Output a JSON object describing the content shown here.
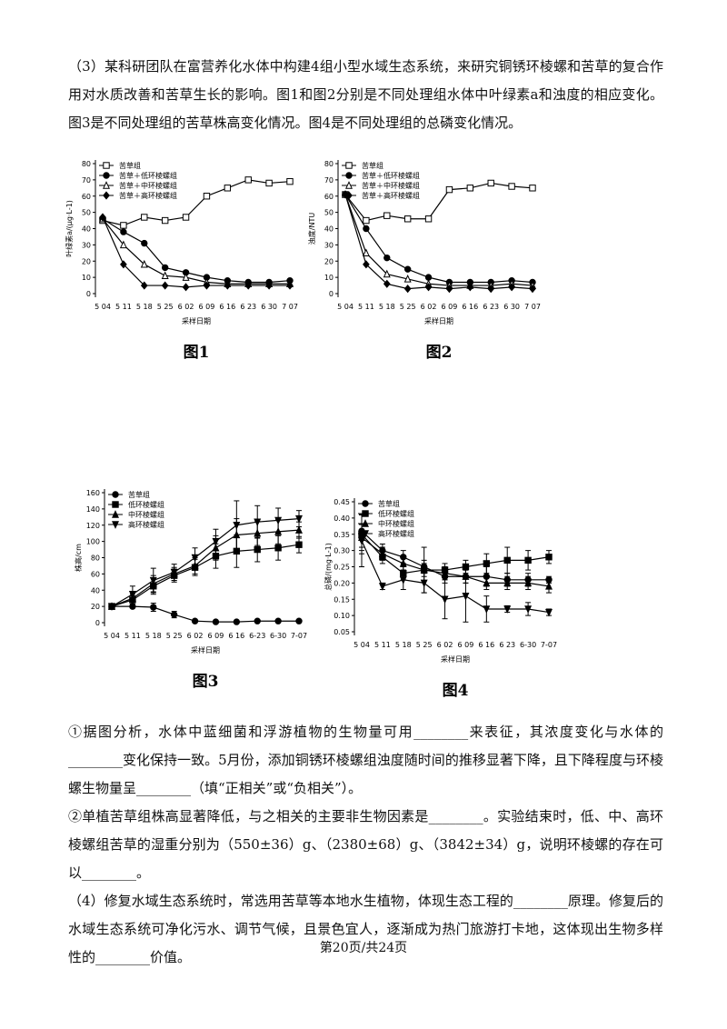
{
  "paragraphs_top": [
    "（3）某科研团队在富营养化水体中构建4组小型水域生态系统，来研究铜锈环棱螺和苦草的复合作用对水质改善和苦草生长的影响。图1和图2分别是不同处理组水体中叶绿素a和浊度的相应变化。图3是不同处理组的苦草株高变化情况。图4是不同处理组的总磷变化情况。"
  ],
  "figures": [
    {
      "type": "line",
      "caption": "图1",
      "xlabel": "采样日期",
      "ylabel": "叶绿素a/(μg·L-1)",
      "categories": [
        "5 04",
        "5 11",
        "5 18",
        "5 25",
        "6 02",
        "6 09",
        "6 16",
        "6 23",
        "6 30",
        "7 07"
      ],
      "ylim": [
        0,
        80
      ],
      "yticks": [
        0,
        10,
        20,
        30,
        40,
        50,
        60,
        70,
        80
      ],
      "series": [
        {
          "name": "苦草组",
          "marker": "square-open",
          "color": "#000000",
          "values": [
            45,
            42,
            47,
            45,
            47,
            60,
            65,
            70,
            68,
            69
          ]
        },
        {
          "name": "苦草＋低环棱螺组",
          "marker": "circle",
          "color": "#000000",
          "values": [
            46,
            38,
            31,
            16,
            13,
            10,
            8,
            7,
            7,
            8
          ]
        },
        {
          "name": "苦草＋中环棱螺组",
          "marker": "triangle-open",
          "color": "#000000",
          "values": [
            46,
            30,
            18,
            11,
            10,
            7,
            6,
            6,
            6,
            6
          ]
        },
        {
          "name": "苦草＋高环棱螺组",
          "marker": "diamond",
          "color": "#000000",
          "values": [
            47,
            18,
            5,
            5,
            4,
            5,
            5,
            5,
            5,
            5
          ]
        }
      ]
    },
    {
      "type": "line",
      "caption": "图2",
      "xlabel": "采样日期",
      "ylabel": "浊度/NTU",
      "categories": [
        "5 04",
        "5 11",
        "5 18",
        "5 25",
        "6 02",
        "6 09",
        "6 16",
        "6 23",
        "6 30",
        "7 07"
      ],
      "ylim": [
        0,
        80
      ],
      "yticks": [
        0,
        10,
        20,
        30,
        40,
        50,
        60,
        70,
        80
      ],
      "series": [
        {
          "name": "苦草组",
          "marker": "square-open",
          "color": "#000000",
          "values": [
            61,
            45,
            48,
            46,
            46,
            64,
            65,
            68,
            66,
            65
          ]
        },
        {
          "name": "苦草＋低环棱螺组",
          "marker": "circle",
          "color": "#000000",
          "values": [
            61,
            40,
            22,
            15,
            10,
            7,
            7,
            7,
            8,
            7
          ]
        },
        {
          "name": "苦草＋中环棱螺组",
          "marker": "triangle-open",
          "color": "#000000",
          "values": [
            61,
            25,
            12,
            9,
            6,
            5,
            5,
            5,
            6,
            5
          ]
        },
        {
          "name": "苦草＋高环棱螺组",
          "marker": "diamond",
          "color": "#000000",
          "values": [
            61,
            18,
            6,
            3,
            4,
            3,
            4,
            3,
            4,
            3
          ]
        }
      ]
    },
    {
      "type": "line",
      "caption": "图3",
      "xlabel": "采样日期",
      "ylabel": "株高/cm",
      "categories": [
        "5 04",
        "5 11",
        "5 18",
        "5 25",
        "6 02",
        "6 09",
        "6 16",
        "6-23",
        "6-30",
        "7-07"
      ],
      "ylim": [
        0,
        160
      ],
      "yticks": [
        0,
        20,
        40,
        60,
        80,
        100,
        120,
        140,
        160
      ],
      "series": [
        {
          "name": "苦草组",
          "marker": "circle",
          "color": "#000000",
          "values": [
            20,
            20,
            19,
            10,
            2,
            1,
            1,
            2,
            2,
            2
          ],
          "errors": [
            0,
            2,
            5,
            4,
            1,
            0,
            0,
            0,
            0,
            0
          ]
        },
        {
          "name": "低环棱螺组",
          "marker": "square",
          "color": "#000000",
          "values": [
            20,
            28,
            45,
            58,
            68,
            82,
            88,
            90,
            92,
            96
          ],
          "errors": [
            0,
            5,
            10,
            8,
            10,
            15,
            20,
            15,
            15,
            10
          ]
        },
        {
          "name": "中环棱螺组",
          "marker": "triangle",
          "color": "#000000",
          "values": [
            20,
            30,
            48,
            60,
            70,
            92,
            108,
            110,
            112,
            114
          ],
          "errors": [
            0,
            5,
            10,
            8,
            10,
            15,
            20,
            15,
            15,
            10
          ]
        },
        {
          "name": "高环棱螺组",
          "marker": "triangle-down",
          "color": "#000000",
          "values": [
            20,
            35,
            52,
            62,
            80,
            100,
            120,
            124,
            126,
            128
          ],
          "errors": [
            0,
            10,
            15,
            10,
            12,
            15,
            30,
            20,
            15,
            10
          ]
        }
      ]
    },
    {
      "type": "line",
      "caption": "图4",
      "xlabel": "采样日期",
      "ylabel": "总磷/(mg·L-1)",
      "categories": [
        "5 04",
        "5 11",
        "5 18",
        "5 25",
        "6 02",
        "6 09",
        "6 16",
        "6 23",
        "6-30",
        "7-07"
      ],
      "ylim": [
        0.05,
        0.45
      ],
      "yticks": [
        0.05,
        {
          "value": 0.1,
          "label": "0.10"
        },
        0.15,
        {
          "value": 0.2,
          "label": "0.20"
        },
        0.25,
        {
          "value": 0.3,
          "label": "0.30"
        },
        0.35,
        {
          "value": 0.4,
          "label": "0.40"
        },
        0.45
      ],
      "series": [
        {
          "name": "苦草组",
          "marker": "circle",
          "color": "#000000",
          "values": [
            0.36,
            0.3,
            0.28,
            0.25,
            0.22,
            0.22,
            0.22,
            0.21,
            0.21,
            0.21
          ],
          "errors": [
            0.05,
            0.02,
            0.02,
            0.02,
            0.02,
            0.02,
            0.03,
            0.02,
            0.02,
            0.01
          ]
        },
        {
          "name": "低环棱螺组",
          "marker": "square",
          "color": "#000000",
          "values": [
            0.35,
            0.28,
            0.23,
            0.24,
            0.24,
            0.25,
            0.26,
            0.27,
            0.27,
            0.28
          ],
          "errors": [
            0.06,
            0.02,
            0.02,
            0.07,
            0.02,
            0.02,
            0.03,
            0.04,
            0.03,
            0.02
          ]
        },
        {
          "name": "中环棱螺组",
          "marker": "triangle",
          "color": "#000000",
          "values": [
            0.34,
            0.29,
            0.26,
            0.24,
            0.23,
            0.22,
            0.2,
            0.2,
            0.2,
            0.19
          ],
          "errors": [
            0.04,
            0.02,
            0.02,
            0.02,
            0.02,
            0.02,
            0.02,
            0.02,
            0.02,
            0.02
          ]
        },
        {
          "name": "高环棱螺组",
          "marker": "triangle-down",
          "color": "#000000",
          "values": [
            0.33,
            0.19,
            0.21,
            0.2,
            0.15,
            0.16,
            0.12,
            0.12,
            0.12,
            0.11
          ],
          "errors": [
            0.08,
            0.01,
            0.03,
            0.03,
            0.06,
            0.08,
            0.04,
            0.01,
            0.02,
            0.01
          ]
        }
      ]
    }
  ],
  "paragraphs_bottom": [
    "①据图分析，水体中蓝细菌和浮游植物的生物量可用________来表征，其浓度变化与水体的________变化保持一致。5月份，添加铜锈环棱螺组浊度随时间的推移显著下降，且下降程度与环棱螺生物量呈________（填“正相关”或“负相关”）。",
    "②单植苦草组株高显著降低，与之相关的主要非生物因素是________。实验结束时，低、中、高环棱螺组苦草的湿重分别为（550±36）g、（2380±68）g、（3842±34）g，说明环棱螺的存在可以________。",
    "（4）修复水域生态系统时，常选用苦草等本地水生植物，体现生态工程的________原理。修复后的水域生态系统可净化污水、调节气候，且景色宜人，逐渐成为热门旅游打卡地，这体现出生物多样性的________价值。"
  ],
  "footer": "第20页/共24页"
}
